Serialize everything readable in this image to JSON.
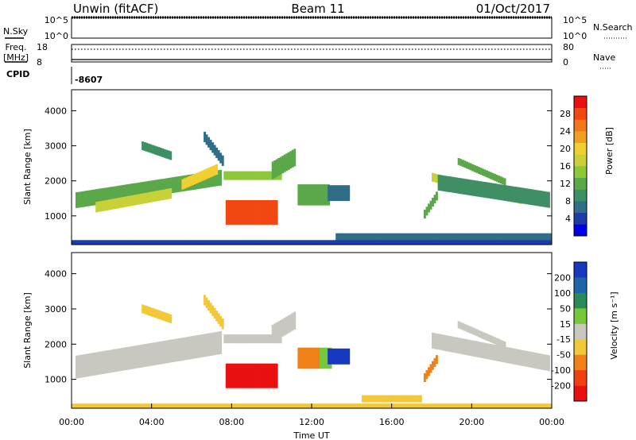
{
  "header": {
    "radar": "Unwin (fitACF)",
    "beam": "Beam 11",
    "date": "01/Oct/2017"
  },
  "top_panels": {
    "nsky_label": "N.Sky",
    "nsearch_label": "N.Search",
    "nsky_ticks": [
      "10^5",
      "10^0"
    ],
    "nsky_right_ticks": [
      "10^5",
      "10^0"
    ],
    "freq_label_line1": "Freq.",
    "freq_label_line2": "[MHz]",
    "freq_ticks": [
      "18",
      "8"
    ],
    "nave_ticks": [
      "80",
      "0"
    ],
    "nave_label": "Nave",
    "cpid_label": "CPID",
    "cpid_value": "-8607"
  },
  "chart_data": [
    {
      "type": "heatmap",
      "panel": "power",
      "ylabel": "Slant Range [km]",
      "xlabel": "",
      "xlim": [
        "00:00",
        "24:00"
      ],
      "ylim": [
        180,
        4600
      ],
      "yticks": [
        "4000",
        "3000",
        "2000",
        "1000"
      ],
      "ytick_values": [
        4000,
        3000,
        2000,
        1000
      ],
      "colorbar": {
        "label": "Power [dB]",
        "ticks": [
          "28",
          "24",
          "20",
          "16",
          "12",
          "8",
          "4"
        ],
        "tick_values": [
          28,
          24,
          20,
          16,
          12,
          8,
          4
        ],
        "range": [
          0,
          32
        ],
        "colors": [
          "#0000e8",
          "#1e3ca8",
          "#2f6e86",
          "#3f8f64",
          "#5aa84a",
          "#8cc83a",
          "#c8d238",
          "#f0d030",
          "#f0a020",
          "#f07818",
          "#f04810",
          "#e81010"
        ]
      },
      "regions": [
        {
          "t0": 0.2,
          "t1": 7.5,
          "r_start": 1450,
          "r_end": 2100,
          "width": 450,
          "level": 11
        },
        {
          "t0": 1.2,
          "t1": 5.0,
          "r_start": 1250,
          "r_end": 1650,
          "width": 300,
          "level": 17
        },
        {
          "t0": 5.5,
          "t1": 7.3,
          "r_start": 1900,
          "r_end": 2350,
          "width": 300,
          "level": 21
        },
        {
          "t0": 6.6,
          "t1": 7.6,
          "r_start": 3250,
          "r_end": 2500,
          "width": 300,
          "level": 7
        },
        {
          "t0": 3.5,
          "t1": 5.0,
          "r_start": 3000,
          "r_end": 2700,
          "width": 250,
          "level": 9
        },
        {
          "t0": 7.7,
          "t1": 10.3,
          "r_start": 1100,
          "r_end": 1100,
          "width": 700,
          "level": 29
        },
        {
          "t0": 7.6,
          "t1": 10.5,
          "r_start": 2150,
          "r_end": 2150,
          "width": 250,
          "level": 14
        },
        {
          "t0": 10.0,
          "t1": 11.2,
          "r_start": 2300,
          "r_end": 2700,
          "width": 500,
          "level": 13
        },
        {
          "t0": 11.3,
          "t1": 12.9,
          "r_start": 1600,
          "r_end": 1600,
          "width": 600,
          "level": 12
        },
        {
          "t0": 12.8,
          "t1": 13.9,
          "r_start": 1650,
          "r_end": 1650,
          "width": 450,
          "level": 7
        },
        {
          "t0": 18.0,
          "t1": 22.5,
          "r_start": 2100,
          "r_end": 1450,
          "width": 250,
          "level": 18
        },
        {
          "t0": 18.3,
          "t1": 23.9,
          "r_start": 1950,
          "r_end": 1450,
          "width": 450,
          "level": 10
        },
        {
          "t0": 19.3,
          "t1": 21.7,
          "r_start": 2550,
          "r_end": 1950,
          "width": 200,
          "level": 12
        },
        {
          "t0": 17.6,
          "t1": 18.3,
          "r_start": 1050,
          "r_end": 1650,
          "width": 250,
          "level": 11
        },
        {
          "t0": 13.2,
          "t1": 24.0,
          "r_start": 380,
          "r_end": 380,
          "width": 250,
          "level": 5
        },
        {
          "t0": 0.0,
          "t1": 24.0,
          "r_start": 250,
          "r_end": 250,
          "width": 120,
          "level": 4
        }
      ]
    },
    {
      "type": "heatmap",
      "panel": "velocity",
      "ylabel": "Slant Range [km]",
      "xlabel": "Time UT",
      "xticks": [
        "00:00",
        "04:00",
        "08:00",
        "12:00",
        "16:00",
        "20:00",
        "00:00"
      ],
      "xtick_hours": [
        0,
        4,
        8,
        12,
        16,
        20,
        24
      ],
      "xlim": [
        "00:00",
        "24:00"
      ],
      "ylim": [
        180,
        4600
      ],
      "yticks": [
        "4000",
        "3000",
        "2000",
        "1000"
      ],
      "ytick_values": [
        4000,
        3000,
        2000,
        1000
      ],
      "colorbar": {
        "label": "Velocity [m s⁻¹]",
        "ticks": [
          "200",
          "100",
          "50",
          "15",
          "-15",
          "-50",
          "-100",
          "-200"
        ],
        "tick_values": [
          200,
          100,
          50,
          15,
          -15,
          -50,
          -100,
          -200
        ],
        "colors": [
          "#1838c0",
          "#1e64a8",
          "#2a8a5a",
          "#74c83a",
          "#c8c8c0",
          "#f0c838",
          "#f08018",
          "#f04010",
          "#e81010"
        ]
      },
      "regions": [
        {
          "t0": 0.2,
          "t1": 7.5,
          "r_start": 1350,
          "r_end": 2050,
          "width": 650,
          "level": 4
        },
        {
          "t0": 6.6,
          "t1": 7.6,
          "r_start": 3250,
          "r_end": 2500,
          "width": 300,
          "level": 5
        },
        {
          "t0": 3.5,
          "t1": 5.0,
          "r_start": 3000,
          "r_end": 2700,
          "width": 250,
          "level": 5
        },
        {
          "t0": 7.7,
          "t1": 10.3,
          "r_start": 1100,
          "r_end": 1100,
          "width": 700,
          "level": 8
        },
        {
          "t0": 7.6,
          "t1": 10.5,
          "r_start": 2150,
          "r_end": 2150,
          "width": 250,
          "level": 4
        },
        {
          "t0": 10.0,
          "t1": 11.2,
          "r_start": 2300,
          "r_end": 2700,
          "width": 500,
          "level": 4
        },
        {
          "t0": 11.3,
          "t1": 12.4,
          "r_start": 1600,
          "r_end": 1600,
          "width": 600,
          "level": 6
        },
        {
          "t0": 12.4,
          "t1": 13.0,
          "r_start": 1600,
          "r_end": 1600,
          "width": 600,
          "level": 3
        },
        {
          "t0": 12.8,
          "t1": 13.9,
          "r_start": 1650,
          "r_end": 1650,
          "width": 450,
          "level": 0
        },
        {
          "t0": 18.0,
          "t1": 23.9,
          "r_start": 2100,
          "r_end": 1450,
          "width": 450,
          "level": 4
        },
        {
          "t0": 19.3,
          "t1": 21.7,
          "r_start": 2550,
          "r_end": 1950,
          "width": 200,
          "level": 4
        },
        {
          "t0": 17.6,
          "t1": 18.3,
          "r_start": 1050,
          "r_end": 1650,
          "width": 250,
          "level": 6
        },
        {
          "t0": 14.5,
          "t1": 17.5,
          "r_start": 450,
          "r_end": 450,
          "width": 200,
          "level": 5
        },
        {
          "t0": 0.0,
          "t1": 24.0,
          "r_start": 250,
          "r_end": 250,
          "width": 120,
          "level": 5
        }
      ]
    }
  ]
}
